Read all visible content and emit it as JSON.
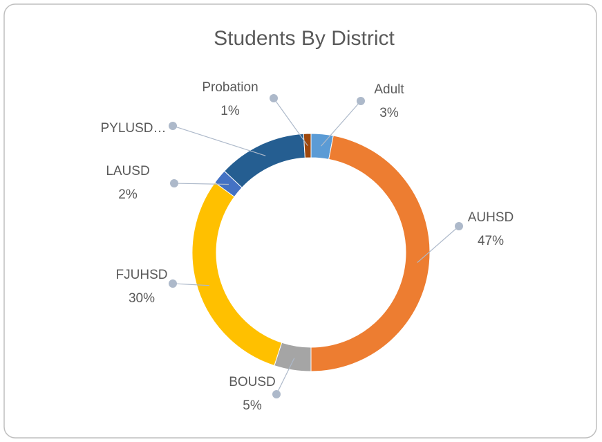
{
  "chart_data": {
    "type": "donut",
    "title": "Students By District",
    "categories": [
      "Adult",
      "AUHSD",
      "BOUSD",
      "FJUHSD",
      "LAUSD",
      "PYLUSD…",
      "Probation"
    ],
    "values": [
      3,
      47,
      5,
      30,
      2,
      12,
      1
    ],
    "value_labels": [
      "3%",
      "47%",
      "5%",
      "30%",
      "2%",
      null,
      "1%"
    ],
    "colors": [
      "#5b9bd5",
      "#ed7d31",
      "#a5a5a5",
      "#ffc000",
      "#4472c4",
      "#255e91",
      "#9e480e"
    ]
  }
}
